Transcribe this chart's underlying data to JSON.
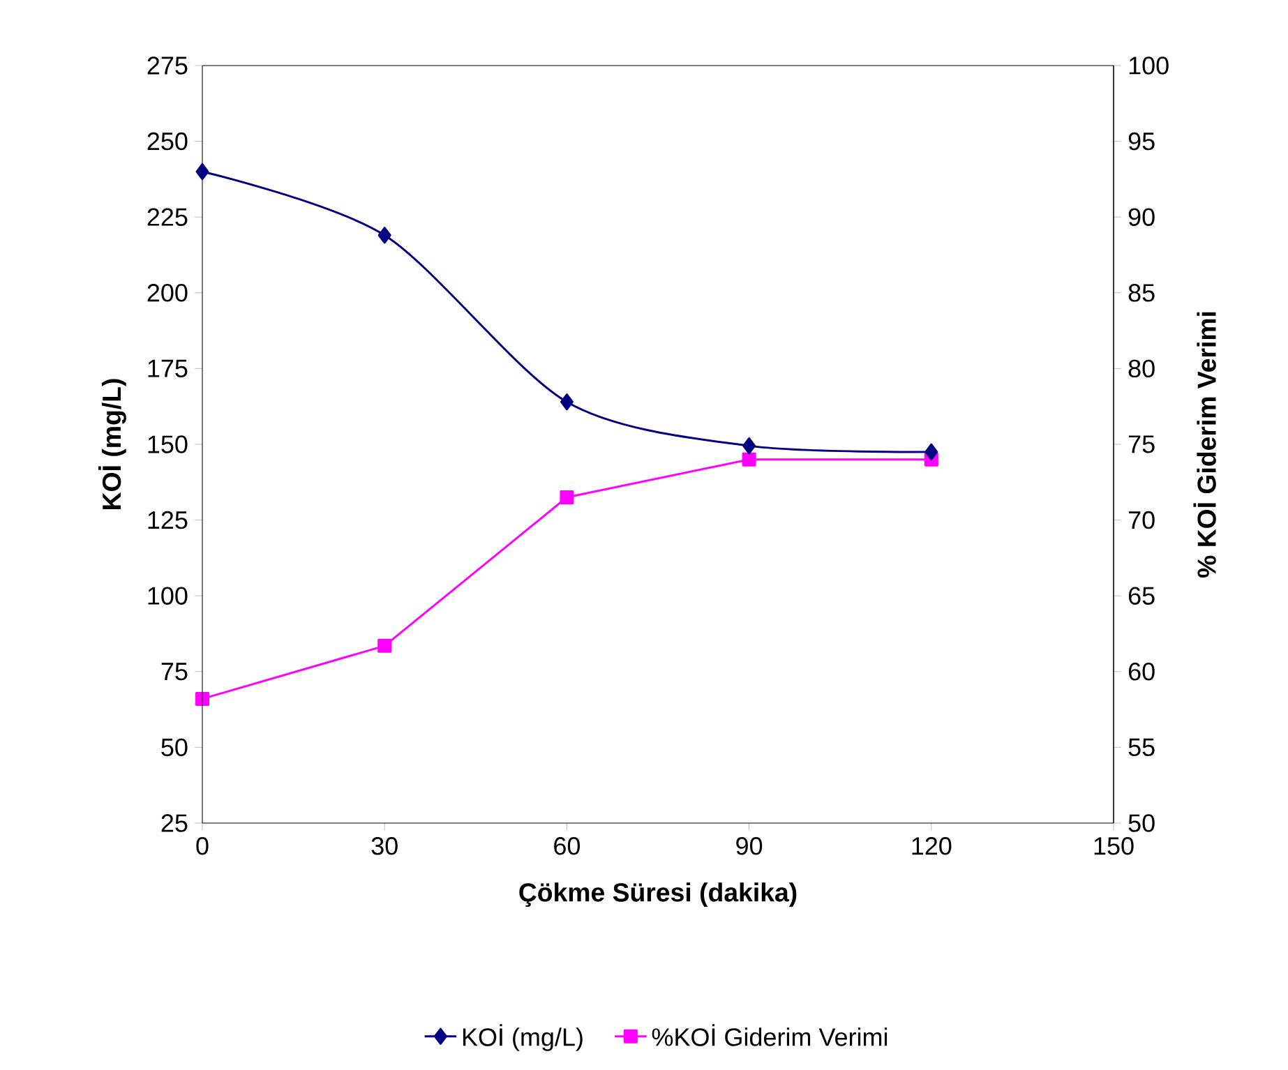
{
  "chart_data": {
    "type": "line",
    "xlabel": "Çökme Süresi (dakika)",
    "ylabel": "KOİ (mg/L)",
    "y2label": "% KOİ Giderim Verimi",
    "x": [
      0,
      30,
      60,
      90,
      120
    ],
    "series": [
      {
        "name": "KOİ (mg/L)",
        "color": "#000080",
        "marker": "diamond",
        "values": [
          240,
          219,
          164,
          149.5,
          147.5
        ]
      },
      {
        "name": "%KOİ Giderim Verimi",
        "color": "#ff00ff",
        "marker": "square",
        "axis": "y2",
        "values": [
          58.2,
          61.7,
          71.5,
          74,
          74
        ]
      }
    ],
    "xlim": [
      0,
      150
    ],
    "xticks": [
      0,
      30,
      60,
      90,
      120,
      150
    ],
    "ylim": [
      25,
      275
    ],
    "yticks": [
      25,
      50,
      75,
      100,
      125,
      150,
      175,
      200,
      225,
      250,
      275
    ],
    "y2lim": [
      50,
      100
    ],
    "y2ticks": [
      50,
      55,
      60,
      65,
      70,
      75,
      80,
      85,
      90,
      95,
      100
    ],
    "legend": "bottom",
    "grid": false,
    "line_style": "solid"
  }
}
